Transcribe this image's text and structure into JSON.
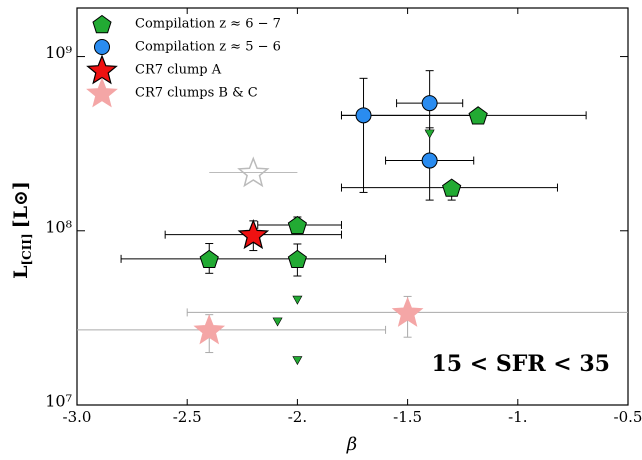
{
  "chart_data": {
    "type": "scatter",
    "xlabel": "β",
    "ylabel": {
      "main": "L",
      "sub": "[CII]",
      "unit": "[L⊙]"
    },
    "annotation": "15 < SFR < 35",
    "xlim": [
      -3.0,
      -0.5
    ],
    "ylim": [
      10000000,
      1900000000
    ],
    "log_y": true,
    "xticks": [
      {
        "value": -3.0,
        "label": "-3.0"
      },
      -2.5,
      {
        "value": -2.0,
        "label": "-2."
      },
      -1.5,
      {
        "value": -1.0,
        "label": "-1."
      },
      -0.5
    ],
    "yticks": [
      {
        "value": 10000000,
        "label": "10⁷"
      },
      {
        "value": 100000000,
        "label": "10⁸"
      },
      {
        "value": 1000000000,
        "label": "10⁹"
      }
    ],
    "legend": "upper left",
    "series": [
      {
        "name": "Compilation z ≈ 6 − 7",
        "color": "#22aa33",
        "marker": "pentagon",
        "errcolor": "#000000",
        "x": [
          -1.18,
          -1.3,
          -2.0,
          -2.4,
          -2.0
        ],
        "y": [
          460000000,
          177000000,
          108000000,
          69000000,
          69000000
        ],
        "x_low": [
          -1.8,
          -1.8,
          -2.18,
          -2.8,
          -2.0
        ],
        "x_high": [
          -0.69,
          -0.82,
          -1.8,
          -2.0,
          -1.6
        ],
        "y_low": [
          null,
          150000000,
          98000000,
          57000000,
          55000000
        ],
        "y_high": [
          null,
          190000000,
          120000000,
          84500000,
          84000000
        ]
      },
      {
        "name": "Compilation z ≈ 5 − 6",
        "color": "#2a8cf0",
        "marker": "circle",
        "errcolor": "#000000",
        "x": [
          -1.7,
          -1.4,
          -1.4
        ],
        "y": [
          460000000,
          540000000,
          253000000
        ],
        "x_low": [
          -1.8,
          -1.55,
          -1.6
        ],
        "x_high": [
          -1.2,
          -1.25,
          -1.2
        ],
        "y_low": [
          166000000,
          370000000,
          150000000
        ],
        "y_high": [
          750000000,
          830000000,
          390000000
        ]
      },
      {
        "name": "CR7 clump A",
        "color": "#ee1111",
        "marker": "star",
        "errcolor": "#000000",
        "x": [
          -2.2
        ],
        "y": [
          95000000
        ],
        "x_low": [
          -2.6
        ],
        "x_high": [
          -1.8
        ],
        "y_low": [
          77000000
        ],
        "y_high": [
          114000000
        ]
      },
      {
        "name": "CR7 clumps B & C",
        "color": "#f4a6a6",
        "marker": "star",
        "errcolor": "#aaaaaa",
        "x": [
          -2.4,
          -1.5
        ],
        "y": [
          27000000,
          34000000
        ],
        "x_low": [
          -3.1,
          -2.5
        ],
        "x_high": [
          -1.6,
          -0.4
        ],
        "y_low": [
          20000000,
          24500000
        ],
        "y_high": [
          33000000,
          42000000
        ]
      }
    ],
    "upper_limits": {
      "color": "#22aa33",
      "x": [
        -1.4,
        -2.0,
        -2.09,
        -2.0
      ],
      "y": [
        360000000,
        40000000,
        30000000,
        18000000
      ]
    },
    "open_star": {
      "color": "#bbbbbb",
      "x": [
        -2.2
      ],
      "y": [
        216000000
      ],
      "x_low": [
        -2.4
      ],
      "x_high": [
        -2.0
      ]
    }
  }
}
